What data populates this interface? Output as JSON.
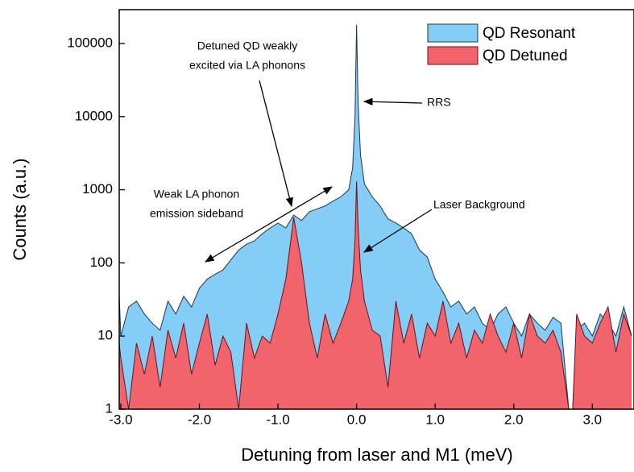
{
  "chart_data": {
    "type": "area",
    "x_label": "Detuning from laser and M1 (meV)",
    "y_label": "Counts (a.u.)",
    "log_y": true,
    "legend_position": "upper right",
    "x": [
      -3.03,
      -3.0,
      -2.9,
      -2.8,
      -2.7,
      -2.6,
      -2.5,
      -2.4,
      -2.3,
      -2.2,
      -2.1,
      -2.0,
      -1.9,
      -1.8,
      -1.7,
      -1.6,
      -1.5,
      -1.4,
      -1.3,
      -1.2,
      -1.1,
      -1.0,
      -0.9,
      -0.8,
      -0.7,
      -0.6,
      -0.5,
      -0.4,
      -0.3,
      -0.2,
      -0.1,
      -0.05,
      -0.02,
      0.0,
      0.02,
      0.05,
      0.1,
      0.2,
      0.3,
      0.4,
      0.5,
      0.6,
      0.7,
      0.8,
      0.9,
      1.0,
      1.1,
      1.2,
      1.3,
      1.4,
      1.5,
      1.6,
      1.7,
      1.8,
      1.9,
      2.0,
      2.1,
      2.2,
      2.3,
      2.4,
      2.5,
      2.6,
      2.7,
      2.75,
      2.8,
      2.9,
      3.0,
      3.1,
      3.2,
      3.3,
      3.4,
      3.5
    ],
    "series": [
      {
        "name": "QD Resonant",
        "color": "#84cdf7",
        "stroke": "#1d3550",
        "values": [
          70,
          10,
          25,
          30,
          20,
          15,
          12,
          30,
          20,
          35,
          25,
          45,
          60,
          70,
          80,
          110,
          150,
          180,
          200,
          250,
          300,
          350,
          300,
          450,
          380,
          500,
          550,
          600,
          700,
          800,
          1000,
          2000,
          10000,
          180000,
          15000,
          3000,
          1200,
          800,
          600,
          400,
          350,
          300,
          250,
          150,
          120,
          60,
          40,
          25,
          30,
          20,
          25,
          15,
          12,
          20,
          25,
          15,
          10,
          20,
          15,
          12,
          18,
          15,
          1,
          1,
          12,
          15,
          10,
          20,
          15,
          10,
          25,
          10
        ]
      },
      {
        "name": "QD Detuned",
        "color": "#f2646b",
        "stroke": "#6b1016",
        "values": [
          10,
          5,
          1,
          8,
          3,
          10,
          2,
          12,
          5,
          15,
          3,
          8,
          20,
          4,
          10,
          6,
          1,
          15,
          5,
          10,
          8,
          20,
          60,
          420,
          100,
          15,
          5,
          20,
          8,
          15,
          30,
          60,
          200,
          1300,
          300,
          80,
          30,
          12,
          10,
          2,
          30,
          8,
          20,
          5,
          15,
          10,
          30,
          8,
          15,
          5,
          12,
          8,
          20,
          10,
          6,
          15,
          5,
          20,
          10,
          8,
          12,
          6,
          1,
          1,
          20,
          10,
          8,
          15,
          25,
          6,
          20,
          10
        ]
      }
    ],
    "xlim": [
      -3.02,
      3.53
    ],
    "ylim": [
      1,
      290000
    ],
    "xticks": [
      {
        "value": -3,
        "label": "-3.0"
      },
      {
        "value": -2,
        "label": "-2.0"
      },
      {
        "value": -1,
        "label": "-1.0"
      },
      {
        "value": 0,
        "label": "0.0"
      },
      {
        "value": 1,
        "label": "1.0"
      },
      {
        "value": 2,
        "label": "2.0"
      },
      {
        "value": 3,
        "label": "3.0"
      }
    ],
    "yticks": [
      1,
      10,
      100,
      1000,
      10000,
      100000
    ],
    "annotations": [
      "Detuned QD weakly",
      "excited via LA phonons",
      "RRS",
      "Weak LA phonon",
      "emission sideband",
      "Laser Background"
    ]
  }
}
